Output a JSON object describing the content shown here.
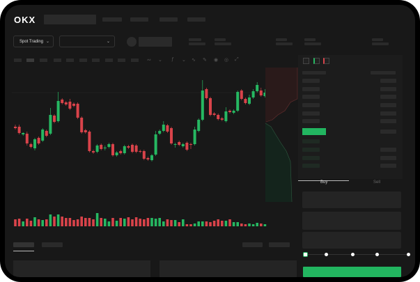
{
  "brand": {
    "logo": "OKX"
  },
  "header": {
    "market_selector": "Spot Trading",
    "chevron": "chevron-down-icon"
  },
  "colors": {
    "up": "#26b862",
    "down": "#d9434a",
    "accent_green": "#22b560",
    "background": "#181818"
  },
  "orderbook": {
    "highlight_color": "#22b560"
  },
  "trade_panel": {
    "buy_label": "Buy",
    "sell_label": "Sell",
    "leverage_steps": 5,
    "slider_value": 0
  },
  "chart_data": {
    "type": "candlestick",
    "candles": [
      [
        58,
        61,
        54,
        56
      ],
      [
        58,
        61,
        47,
        49
      ],
      [
        47,
        50,
        45,
        49
      ],
      [
        48,
        51,
        31,
        34
      ],
      [
        33,
        35,
        27,
        29
      ],
      [
        27,
        42,
        24,
        40
      ],
      [
        42,
        44,
        32,
        34
      ],
      [
        38,
        56,
        36,
        54
      ],
      [
        52,
        54,
        43,
        45
      ],
      [
        48,
        85,
        46,
        75
      ],
      [
        74,
        76,
        63,
        65
      ],
      [
        66,
        108,
        64,
        95
      ],
      [
        97,
        99,
        90,
        92
      ],
      [
        93,
        95,
        88,
        90
      ],
      [
        94,
        98,
        82,
        84
      ],
      [
        91,
        93,
        86,
        88
      ],
      [
        91,
        93,
        69,
        71
      ],
      [
        71,
        73,
        48,
        50
      ],
      [
        53,
        55,
        48,
        50
      ],
      [
        51,
        53,
        21,
        23
      ],
      [
        23,
        25,
        19,
        21
      ],
      [
        22,
        33,
        20,
        31
      ],
      [
        32,
        34,
        24,
        26
      ],
      [
        27,
        31,
        24,
        28
      ],
      [
        29,
        35,
        27,
        33
      ],
      [
        33,
        35,
        15,
        17
      ],
      [
        17,
        23,
        15,
        21
      ],
      [
        23,
        25,
        18,
        20
      ],
      [
        20,
        32,
        18,
        30
      ],
      [
        30,
        32,
        26,
        28
      ],
      [
        32,
        34,
        20,
        22
      ],
      [
        31,
        33,
        20,
        22
      ],
      [
        23,
        25,
        20,
        22
      ],
      [
        23,
        25,
        10,
        12
      ],
      [
        13,
        15,
        9,
        11
      ],
      [
        10,
        19,
        8,
        17
      ],
      [
        18,
        52,
        16,
        47
      ],
      [
        48,
        54,
        46,
        52
      ],
      [
        52,
        66,
        50,
        61
      ],
      [
        60,
        62,
        49,
        51
      ],
      [
        56,
        58,
        32,
        34
      ],
      [
        32,
        35,
        28,
        33
      ],
      [
        36,
        38,
        30,
        32
      ],
      [
        30,
        35,
        28,
        33
      ],
      [
        35,
        37,
        23,
        25
      ],
      [
        33,
        35,
        26,
        32
      ],
      [
        33,
        58,
        31,
        54
      ],
      [
        52,
        70,
        50,
        68
      ],
      [
        68,
        125,
        66,
        110
      ],
      [
        112,
        114,
        97,
        99
      ],
      [
        99,
        101,
        73,
        75
      ],
      [
        77,
        79,
        73,
        75
      ],
      [
        75,
        77,
        67,
        69
      ],
      [
        70,
        72,
        66,
        68
      ],
      [
        66,
        86,
        64,
        80
      ],
      [
        81,
        83,
        77,
        79
      ],
      [
        78,
        83,
        76,
        81
      ],
      [
        81,
        110,
        79,
        108
      ],
      [
        110,
        112,
        96,
        98
      ],
      [
        98,
        100,
        90,
        92
      ],
      [
        91,
        104,
        89,
        100
      ],
      [
        100,
        112,
        98,
        109
      ],
      [
        109,
        122,
        107,
        118
      ],
      [
        110,
        114,
        101,
        103
      ],
      [
        102,
        112,
        100,
        107
      ]
    ],
    "volumes": [
      10,
      11,
      7,
      11,
      8,
      13,
      10,
      9,
      10,
      17,
      14,
      17,
      14,
      12,
      12,
      9,
      10,
      14,
      12,
      12,
      10,
      19,
      12,
      11,
      7,
      12,
      8,
      12,
      11,
      13,
      10,
      13,
      11,
      10,
      12,
      12,
      11,
      12,
      7,
      10,
      9,
      9,
      6,
      10,
      3,
      3,
      4,
      7,
      7,
      7,
      6,
      8,
      10,
      8,
      8,
      10,
      6,
      6,
      4,
      3,
      4,
      3,
      5,
      4,
      3
    ]
  }
}
